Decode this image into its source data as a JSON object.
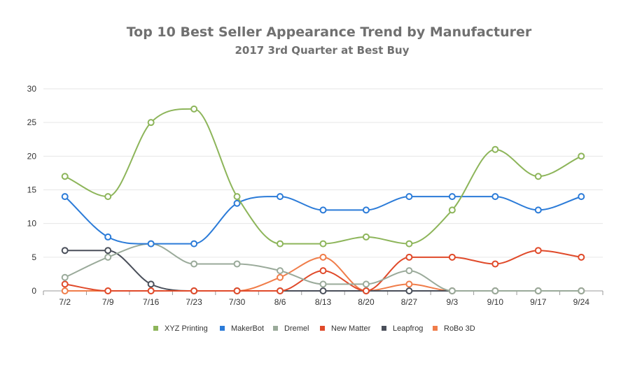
{
  "chart_data": {
    "type": "line",
    "title": "Top 10 Best Seller Appearance Trend by Manufacturer",
    "subtitle": "2017 3rd Quarter at Best Buy",
    "xlabel": "",
    "ylabel": "",
    "categories": [
      "7/2",
      "7/9",
      "7/16",
      "7/23",
      "7/30",
      "8/6",
      "8/13",
      "8/20",
      "8/27",
      "9/3",
      "9/10",
      "9/17",
      "9/24"
    ],
    "ylim": [
      0,
      30
    ],
    "yticks": [
      0,
      5,
      10,
      15,
      20,
      25,
      30
    ],
    "grid": true,
    "legend_position": "bottom",
    "series": [
      {
        "name": "XYZ Printing",
        "color": "#8db55a",
        "values": [
          17,
          14,
          25,
          27,
          14,
          7,
          7,
          8,
          7,
          12,
          21,
          17,
          20
        ]
      },
      {
        "name": "MakerBot",
        "color": "#2b7bd8",
        "values": [
          14,
          8,
          7,
          7,
          13,
          14,
          12,
          12,
          14,
          14,
          14,
          12,
          14
        ]
      },
      {
        "name": "Dremel",
        "color": "#9aaa9a",
        "values": [
          2,
          5,
          7,
          4,
          4,
          3,
          1,
          1,
          3,
          0,
          0,
          0,
          0
        ]
      },
      {
        "name": "New Matter",
        "color": "#e04a2a",
        "values": [
          1,
          0,
          0,
          0,
          0,
          0,
          3,
          0,
          5,
          5,
          4,
          6,
          5
        ]
      },
      {
        "name": "Leapfrog",
        "color": "#4a4f5a",
        "values": [
          6,
          6,
          1,
          0,
          0,
          0,
          0,
          0,
          0,
          0,
          0,
          0,
          0
        ]
      },
      {
        "name": "RoBo 3D",
        "color": "#f07d4a",
        "values": [
          0,
          0,
          0,
          0,
          0,
          2,
          5,
          0,
          1,
          0,
          0,
          0,
          0
        ]
      }
    ]
  }
}
